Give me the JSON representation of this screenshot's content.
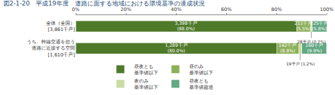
{
  "chart_data": {
    "type": "bar",
    "title": "図2-1-20　平成19年度　道路に面する地域における環境基準の達成状況",
    "orientation": "horizontal",
    "stacked": true,
    "data_labels": true,
    "categories": [
      "全体（全国）\n[3,861千戸]",
      "うち、幹線交通を担う\n道路に近接する空間\n[1,610千戸]"
    ],
    "series": [
      {
        "name": "昼夜とも\n基準値以下",
        "color": "#4f7a2a",
        "values": [
          88.0,
          80.0
        ],
        "value_labels": [
          "3,398千戸\n(88.0%)",
          "1,289千戸\n(80.0%)"
        ]
      },
      {
        "name": "昼のみ\n基準値以下",
        "color": "#8db05a",
        "values": [
          5.5,
          8.8
        ],
        "value_labels": [
          "211千戸\n(5.5%)",
          "142千戸\n(8.8%)"
        ]
      },
      {
        "name": "夜のみ\n基準値以下",
        "color": "#c9dca3",
        "values": [
          0.7,
          1.2
        ],
        "value_labels": [
          "28千戸 (0.7%)",
          "19千戸 (1.2%)"
        ]
      },
      {
        "name": "昼夜とも\n基準値超過",
        "color": "#62a882",
        "values": [
          5.8,
          9.9
        ],
        "value_labels": [
          "225千戸\n(5.8%)",
          "160千戸\n(9.9%)"
        ]
      }
    ],
    "xlim": [
      0,
      100
    ],
    "xticks": [
      {
        "value": 0,
        "label": "0%"
      },
      {
        "value": 20,
        "label": "20%"
      },
      {
        "value": 40,
        "label": "40%"
      },
      {
        "value": 60,
        "label": "60%"
      },
      {
        "value": 80,
        "label": "80%"
      },
      {
        "value": 100,
        "label": "100%"
      }
    ],
    "grid": false,
    "legend": "bottom"
  }
}
